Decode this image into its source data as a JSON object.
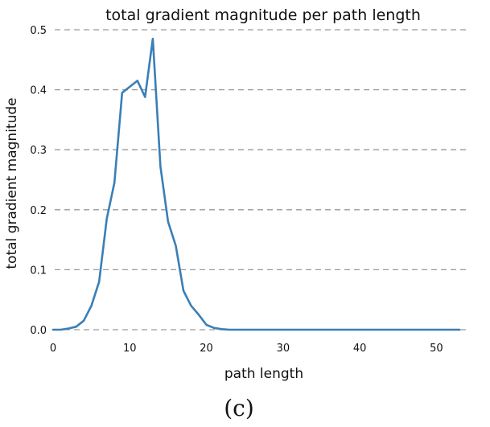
{
  "chart_data": {
    "type": "line",
    "title": "total gradient magnitude per path length",
    "xlabel": "path length",
    "ylabel": "total gradient magnitude",
    "xlim": [
      0,
      53
    ],
    "ylim": [
      0,
      0.5
    ],
    "xticks": [
      0,
      10,
      20,
      30,
      40,
      50
    ],
    "xtick_labels": [
      "0",
      "10",
      "20",
      "30",
      "40",
      "50"
    ],
    "yticks": [
      0.0,
      0.1,
      0.2,
      0.3,
      0.4,
      0.5
    ],
    "ytick_labels": [
      "0.0",
      "0.1",
      "0.2",
      "0.3",
      "0.4",
      "0.5"
    ],
    "grid": "horizontal dashed",
    "series": [
      {
        "color": "#3a7fb6",
        "x": [
          0,
          1,
          2,
          3,
          4,
          5,
          6,
          7,
          8,
          9,
          10,
          11,
          12,
          13,
          14,
          15,
          16,
          17,
          18,
          19,
          20,
          21,
          22,
          23,
          24,
          25,
          26,
          27,
          28,
          29,
          30,
          31,
          32,
          33,
          34,
          35,
          36,
          37,
          38,
          39,
          40,
          41,
          42,
          43,
          44,
          45,
          46,
          47,
          48,
          49,
          50,
          51,
          52,
          53
        ],
        "y": [
          0.0,
          0.0,
          0.002,
          0.005,
          0.015,
          0.04,
          0.08,
          0.185,
          0.245,
          0.395,
          0.405,
          0.415,
          0.388,
          0.485,
          0.272,
          0.18,
          0.14,
          0.065,
          0.04,
          0.025,
          0.008,
          0.003,
          0.001,
          0.0,
          0.0,
          0.0,
          0.0,
          0.0,
          0.0,
          0.0,
          0.0,
          0.0,
          0.0,
          0.0,
          0.0,
          0.0,
          0.0,
          0.0,
          0.0,
          0.0,
          0.0,
          0.0,
          0.0,
          0.0,
          0.0,
          0.0,
          0.0,
          0.0,
          0.0,
          0.0,
          0.0,
          0.0,
          0.0,
          0.0
        ]
      }
    ]
  },
  "caption": "(c)"
}
